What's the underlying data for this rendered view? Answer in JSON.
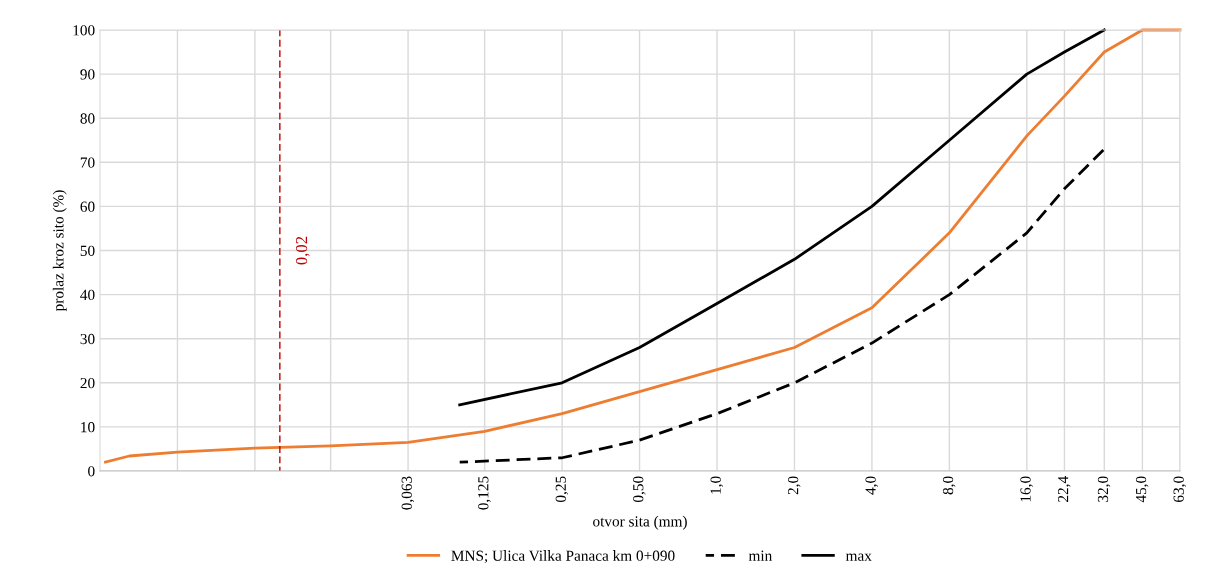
{
  "chart_data": {
    "type": "line",
    "xlabel": "otvor sita (mm)",
    "ylabel": "prolaz kroz sito (%)",
    "log": "x",
    "xlim": [
      0.004,
      63
    ],
    "ylim": [
      0,
      100
    ],
    "xticks": [
      {
        "value": 0.008,
        "label": null
      },
      {
        "value": 0.016,
        "label": null
      },
      {
        "value": 0.0315,
        "label": null
      },
      {
        "value": 0.063,
        "label": "0,063"
      },
      {
        "value": 0.125,
        "label": "0,125"
      },
      {
        "value": 0.25,
        "label": "0,25"
      },
      {
        "value": 0.5,
        "label": "0,50"
      },
      {
        "value": 1,
        "label": "1,0"
      },
      {
        "value": 2,
        "label": "2,0"
      },
      {
        "value": 4,
        "label": "4,0"
      },
      {
        "value": 8,
        "label": "8,0"
      },
      {
        "value": 16,
        "label": "16,0"
      },
      {
        "value": 22.4,
        "label": "22,4"
      },
      {
        "value": 32,
        "label": "32,0"
      },
      {
        "value": 45,
        "label": "45,0"
      },
      {
        "value": 63,
        "label": "63,0"
      }
    ],
    "yticks": [
      0,
      10,
      20,
      30,
      40,
      50,
      60,
      70,
      80,
      90,
      100
    ],
    "grid": true,
    "legend": "bottom",
    "marker": "none",
    "series": [
      {
        "name": "MNS; Ulica Vilka Panaca km 0+090",
        "color": "#ed7d31",
        "line_style": "solid",
        "x": [
          0.0042,
          0.0052,
          0.008,
          0.016,
          0.0315,
          0.063,
          0.125,
          0.25,
          0.5,
          1,
          2,
          4,
          8,
          16,
          22.4,
          32,
          45,
          63
        ],
        "values": [
          2,
          3.4,
          4.3,
          5.2,
          5.7,
          6.5,
          9,
          13,
          18,
          23,
          28,
          37,
          54,
          76,
          85,
          95,
          100,
          100
        ]
      },
      {
        "name": "min",
        "color": "#000000",
        "line_style": "dashed",
        "x": [
          0.1,
          0.25,
          0.5,
          1,
          2,
          4,
          8,
          16,
          22.4,
          32
        ],
        "values": [
          2,
          3,
          7,
          13,
          20,
          29,
          40,
          54,
          64,
          73
        ]
      },
      {
        "name": "max",
        "color": "#000000",
        "line_style": "solid",
        "x": [
          0.1,
          0.25,
          0.5,
          1,
          2,
          4,
          8,
          16,
          22.4,
          32
        ],
        "values": [
          15,
          20,
          28,
          38,
          48,
          60,
          75,
          90,
          95,
          100
        ]
      }
    ],
    "ref_lines": [
      {
        "axis": "x",
        "value": 0.02,
        "label": "0,02",
        "color": "#c00000",
        "line_style": "dashed"
      }
    ]
  }
}
